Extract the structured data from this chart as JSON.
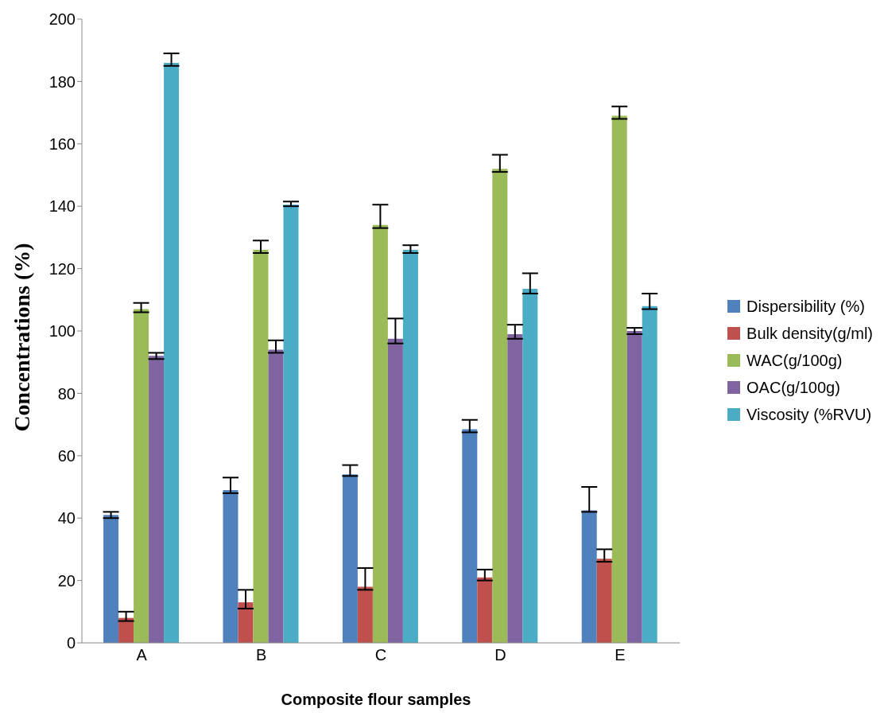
{
  "chart_data": {
    "type": "bar",
    "xlabel": "Composite flour samples",
    "ylabel": "Concentrations (%)",
    "categories": [
      "A",
      "B",
      "C",
      "D",
      "E"
    ],
    "series": [
      {
        "name": "Dispersibility (%)",
        "color": "#4f81bd",
        "values": [
          41,
          49,
          54,
          68.5,
          42.5
        ],
        "errors": [
          [
            40,
            42
          ],
          [
            48,
            53
          ],
          [
            53.5,
            57
          ],
          [
            67.5,
            71.5
          ],
          [
            42,
            50
          ]
        ]
      },
      {
        "name": "Bulk density(g/ml)",
        "color": "#c0504d",
        "values": [
          8,
          13,
          18,
          21,
          27
        ],
        "errors": [
          [
            7,
            10
          ],
          [
            11,
            17
          ],
          [
            17,
            24
          ],
          [
            20,
            23.5
          ],
          [
            26,
            30
          ]
        ]
      },
      {
        "name": "WAC(g/100g)",
        "color": "#9bbb59",
        "values": [
          107,
          126,
          134,
          152,
          169
        ],
        "errors": [
          [
            106,
            109
          ],
          [
            125,
            129
          ],
          [
            133,
            140.5
          ],
          [
            151,
            156.5
          ],
          [
            168,
            172
          ]
        ]
      },
      {
        "name": "OAC(g/100g)",
        "color": "#8064a2",
        "values": [
          92,
          94,
          97.5,
          99,
          100
        ],
        "errors": [
          [
            91,
            93
          ],
          [
            93,
            97
          ],
          [
            96,
            104
          ],
          [
            97.5,
            102
          ],
          [
            99,
            101
          ]
        ]
      },
      {
        "name": "Viscosity (%RVU)",
        "color": "#4bacc6",
        "values": [
          186,
          140.5,
          126,
          113.5,
          108
        ],
        "errors": [
          [
            185,
            189
          ],
          [
            140,
            141.5
          ],
          [
            125,
            127.5
          ],
          [
            112,
            118.5
          ],
          [
            107,
            112
          ]
        ]
      }
    ],
    "ylim": [
      0,
      200
    ],
    "yticks": [
      0,
      20,
      40,
      60,
      80,
      100,
      120,
      140,
      160,
      180,
      200
    ],
    "grid": false,
    "legend": "right"
  }
}
